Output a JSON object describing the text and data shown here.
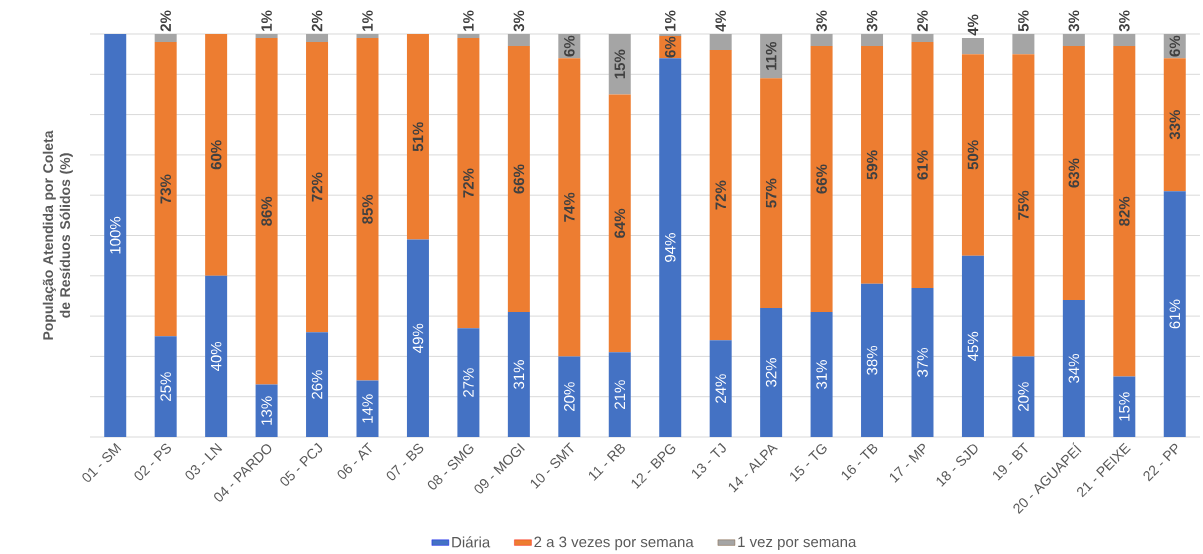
{
  "chart_data": {
    "type": "bar",
    "stacked": true,
    "ylabel": "População Atendida por Coleta de Resíduos Sólidos (%)",
    "categories": [
      "01 - SM",
      "02 - PS",
      "03 - LN",
      "04 - PARDO",
      "05 - PCJ",
      "06 - AT",
      "07 - BS",
      "08 - SMG",
      "09 - MOGI",
      "10 - SMT",
      "11 - RB",
      "12 - BPG",
      "13 - TJ",
      "14 - ALPA",
      "15 - TG",
      "16 - TB",
      "17 - MP",
      "18 - SJD",
      "19 - BT",
      "20 - AGUAPEÍ",
      "21 - PEIXE",
      "22 - PP"
    ],
    "series": [
      {
        "name": "Diária",
        "color": "#4472c4",
        "values": [
          100,
          25,
          40,
          13,
          26,
          14,
          49,
          27,
          31,
          20,
          21,
          94,
          24,
          32,
          31,
          38,
          37,
          45,
          20,
          34,
          15,
          61
        ],
        "value_labels": [
          "100%",
          "25%",
          "40%",
          "13%",
          "26%",
          "14%",
          "49%",
          "27%",
          "31%",
          "20%",
          "21%",
          "94%",
          "24%",
          "32%",
          "31%",
          "38%",
          "37%",
          "45%",
          "20%",
          "34%",
          "15%",
          "61%"
        ]
      },
      {
        "name": "2 a 3 vezes por semana",
        "color": "#ed7d31",
        "values": [
          0,
          73,
          60,
          86,
          72,
          85,
          51,
          72,
          66,
          74,
          64,
          5.5,
          72,
          57,
          66,
          59,
          61,
          50,
          75,
          63,
          82,
          33
        ],
        "value_labels": [
          null,
          "73%",
          "60%",
          "86%",
          "72%",
          "85%",
          "51%",
          "72%",
          "66%",
          "74%",
          "64%",
          "6%",
          "72%",
          "57%",
          "66%",
          "59%",
          "61%",
          "50%",
          "75%",
          "63%",
          "82%",
          "33%"
        ]
      },
      {
        "name": "1  vez por semana",
        "color": "#a5a5a5",
        "values": [
          0,
          2,
          0,
          1,
          2,
          1,
          0,
          1,
          3,
          6,
          15,
          0.5,
          4,
          11,
          3,
          3,
          2,
          4,
          5,
          3,
          3,
          6
        ],
        "value_labels": [
          null,
          "2%",
          null,
          "1%",
          "2%",
          "1%",
          null,
          "1%",
          "3%",
          "6%",
          "15%",
          "1%",
          "4%",
          "11%",
          "3%",
          "3%",
          "2%",
          "4%",
          "5%",
          "3%",
          "3%",
          "6%"
        ]
      }
    ],
    "ylim": [
      0,
      100
    ],
    "yticks": [
      {
        "value": 0,
        "label": null
      },
      {
        "value": 10,
        "label": null
      },
      {
        "value": 20,
        "label": null
      },
      {
        "value": 30,
        "label": null
      },
      {
        "value": 40,
        "label": null
      },
      {
        "value": 50,
        "label": null
      },
      {
        "value": 60,
        "label": null
      },
      {
        "value": 70,
        "label": null
      },
      {
        "value": 80,
        "label": null
      },
      {
        "value": 90,
        "label": null
      },
      {
        "value": 100,
        "label": null
      }
    ],
    "tick_labels": "x",
    "grid": "y",
    "legend": "bottom"
  }
}
